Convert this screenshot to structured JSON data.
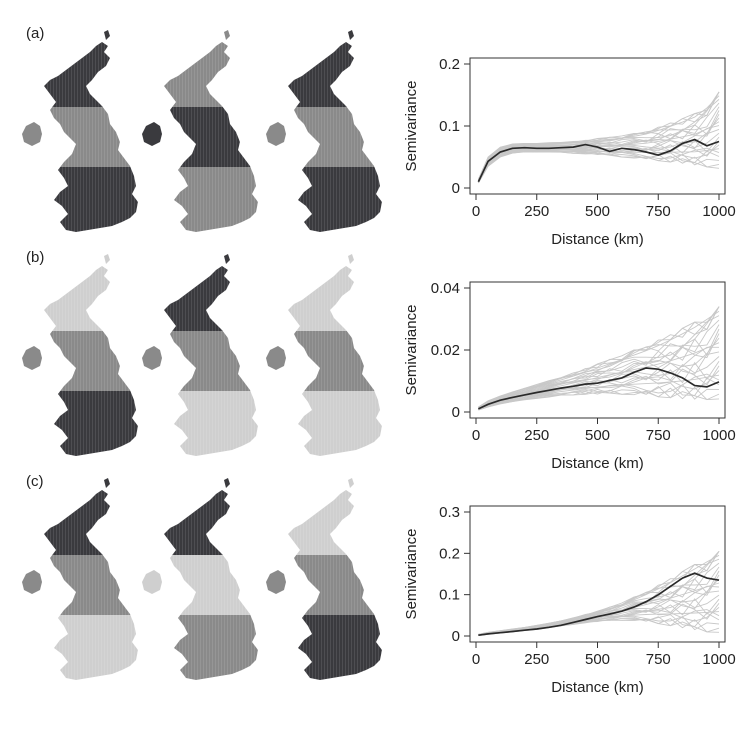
{
  "figure": {
    "panels": [
      {
        "label": "(a)",
        "maps": [
          {
            "shade": "mixed-dark"
          },
          {
            "shade": "mixed-mid"
          },
          {
            "shade": "mixed-dark"
          }
        ]
      },
      {
        "label": "(b)",
        "maps": [
          {
            "shade": "light-north-dark-south"
          },
          {
            "shade": "dark-north-light-south"
          },
          {
            "shade": "light-mixed"
          }
        ]
      },
      {
        "label": "(c)",
        "maps": [
          {
            "shade": "dark-north-light-south"
          },
          {
            "shade": "dark-north-mixed-south"
          },
          {
            "shade": "light-north-dark-south"
          }
        ]
      }
    ]
  },
  "colors": {
    "envelope": "#c8c8c8",
    "observed": "#2a2a2a",
    "map_dark": "#3a3a3e",
    "map_mid": "#8a8a8a",
    "map_light": "#cfcfcf"
  },
  "chart_data": [
    {
      "type": "line",
      "panel": "(a)",
      "xlabel": "Distance (km)",
      "ylabel": "Semivariance",
      "xlim": [
        0,
        1000
      ],
      "ylim": [
        0,
        0.2
      ],
      "xticks": [
        "0",
        "250",
        "500",
        "750",
        "1000"
      ],
      "xtick_values": [
        0,
        250,
        500,
        750,
        1000
      ],
      "yticks": [
        "0",
        "0.1",
        "0.2"
      ],
      "ytick_values": [
        0,
        0.1,
        0.2
      ],
      "grid": false,
      "series": [
        {
          "role": "observed",
          "x": [
            10,
            50,
            100,
            150,
            200,
            250,
            300,
            350,
            400,
            450,
            500,
            550,
            600,
            650,
            700,
            750,
            800,
            850,
            900,
            950,
            1000
          ],
          "values": [
            0.01,
            0.043,
            0.058,
            0.064,
            0.065,
            0.064,
            0.064,
            0.065,
            0.066,
            0.07,
            0.066,
            0.059,
            0.064,
            0.062,
            0.058,
            0.053,
            0.06,
            0.072,
            0.078,
            0.068,
            0.075
          ]
        },
        {
          "role": "envelope-lower",
          "x": [
            10,
            50,
            100,
            150,
            200,
            250,
            300,
            350,
            400,
            450,
            500,
            550,
            600,
            650,
            700,
            750,
            800,
            850,
            900,
            950,
            1000
          ],
          "values": [
            0.008,
            0.035,
            0.05,
            0.056,
            0.058,
            0.058,
            0.058,
            0.057,
            0.056,
            0.055,
            0.054,
            0.052,
            0.05,
            0.048,
            0.046,
            0.044,
            0.042,
            0.04,
            0.037,
            0.034,
            0.03
          ]
        },
        {
          "role": "envelope-upper",
          "x": [
            10,
            50,
            100,
            150,
            200,
            250,
            300,
            350,
            400,
            450,
            500,
            550,
            600,
            650,
            700,
            750,
            800,
            850,
            900,
            950,
            1000
          ],
          "values": [
            0.014,
            0.05,
            0.066,
            0.071,
            0.072,
            0.072,
            0.073,
            0.074,
            0.075,
            0.077,
            0.08,
            0.082,
            0.085,
            0.088,
            0.092,
            0.098,
            0.105,
            0.112,
            0.12,
            0.135,
            0.155
          ]
        }
      ]
    },
    {
      "type": "line",
      "panel": "(b)",
      "xlabel": "Distance (km)",
      "ylabel": "Semivariance",
      "xlim": [
        0,
        1000
      ],
      "ylim": [
        0,
        0.04
      ],
      "xticks": [
        "0",
        "250",
        "500",
        "750",
        "1000"
      ],
      "xtick_values": [
        0,
        250,
        500,
        750,
        1000
      ],
      "yticks": [
        "0",
        "0.02",
        "0.04"
      ],
      "ytick_values": [
        0,
        0.02,
        0.04
      ],
      "grid": false,
      "series": [
        {
          "role": "observed",
          "x": [
            10,
            50,
            100,
            150,
            200,
            250,
            300,
            350,
            400,
            450,
            500,
            550,
            600,
            650,
            700,
            750,
            800,
            850,
            900,
            950,
            1000
          ],
          "values": [
            0.001,
            0.0025,
            0.0038,
            0.0047,
            0.0055,
            0.0063,
            0.007,
            0.0077,
            0.0083,
            0.009,
            0.0093,
            0.0102,
            0.011,
            0.0128,
            0.0142,
            0.0138,
            0.0126,
            0.011,
            0.0085,
            0.0081,
            0.0097
          ]
        },
        {
          "role": "envelope-lower",
          "x": [
            10,
            50,
            100,
            150,
            200,
            250,
            300,
            350,
            400,
            450,
            500,
            550,
            600,
            650,
            700,
            750,
            800,
            850,
            900,
            950,
            1000
          ],
          "values": [
            0.0006,
            0.0016,
            0.0026,
            0.0033,
            0.0039,
            0.0044,
            0.0048,
            0.0052,
            0.0055,
            0.0057,
            0.0058,
            0.0058,
            0.0057,
            0.0055,
            0.0052,
            0.0049,
            0.0046,
            0.0043,
            0.0041,
            0.004,
            0.0038
          ]
        },
        {
          "role": "envelope-upper",
          "x": [
            10,
            50,
            100,
            150,
            200,
            250,
            300,
            350,
            400,
            450,
            500,
            550,
            600,
            650,
            700,
            750,
            800,
            850,
            900,
            950,
            1000
          ],
          "values": [
            0.0016,
            0.0036,
            0.0052,
            0.0065,
            0.0077,
            0.0089,
            0.0101,
            0.0113,
            0.0126,
            0.014,
            0.0155,
            0.017,
            0.0185,
            0.02,
            0.0215,
            0.0232,
            0.025,
            0.027,
            0.029,
            0.0315,
            0.034
          ]
        }
      ]
    },
    {
      "type": "line",
      "panel": "(c)",
      "xlabel": "Distance (km)",
      "ylabel": "Semivariance",
      "xlim": [
        0,
        1000
      ],
      "ylim": [
        0,
        0.3
      ],
      "xticks": [
        "0",
        "250",
        "500",
        "750",
        "1000"
      ],
      "xtick_values": [
        0,
        250,
        500,
        750,
        1000
      ],
      "yticks": [
        "0",
        "0.1",
        "0.2",
        "0.3"
      ],
      "ytick_values": [
        0,
        0.1,
        0.2,
        0.3
      ],
      "grid": false,
      "series": [
        {
          "role": "observed",
          "x": [
            10,
            50,
            100,
            150,
            200,
            250,
            300,
            350,
            400,
            450,
            500,
            550,
            600,
            650,
            700,
            750,
            800,
            850,
            900,
            950,
            1000
          ],
          "values": [
            0.002,
            0.005,
            0.008,
            0.011,
            0.014,
            0.017,
            0.021,
            0.026,
            0.033,
            0.04,
            0.047,
            0.053,
            0.06,
            0.07,
            0.083,
            0.1,
            0.12,
            0.14,
            0.152,
            0.14,
            0.135
          ]
        },
        {
          "role": "envelope-lower",
          "x": [
            10,
            50,
            100,
            150,
            200,
            250,
            300,
            350,
            400,
            450,
            500,
            550,
            600,
            650,
            700,
            750,
            800,
            850,
            900,
            950,
            1000
          ],
          "values": [
            0.001,
            0.004,
            0.007,
            0.01,
            0.013,
            0.016,
            0.02,
            0.024,
            0.028,
            0.032,
            0.035,
            0.037,
            0.038,
            0.037,
            0.034,
            0.03,
            0.025,
            0.02,
            0.015,
            0.01,
            0.006
          ]
        },
        {
          "role": "envelope-upper",
          "x": [
            10,
            50,
            100,
            150,
            200,
            250,
            300,
            350,
            400,
            450,
            500,
            550,
            600,
            650,
            700,
            750,
            800,
            850,
            900,
            950,
            1000
          ],
          "values": [
            0.004,
            0.009,
            0.013,
            0.017,
            0.021,
            0.026,
            0.031,
            0.037,
            0.044,
            0.052,
            0.06,
            0.07,
            0.081,
            0.094,
            0.108,
            0.123,
            0.139,
            0.156,
            0.173,
            0.19,
            0.205
          ]
        }
      ]
    }
  ]
}
